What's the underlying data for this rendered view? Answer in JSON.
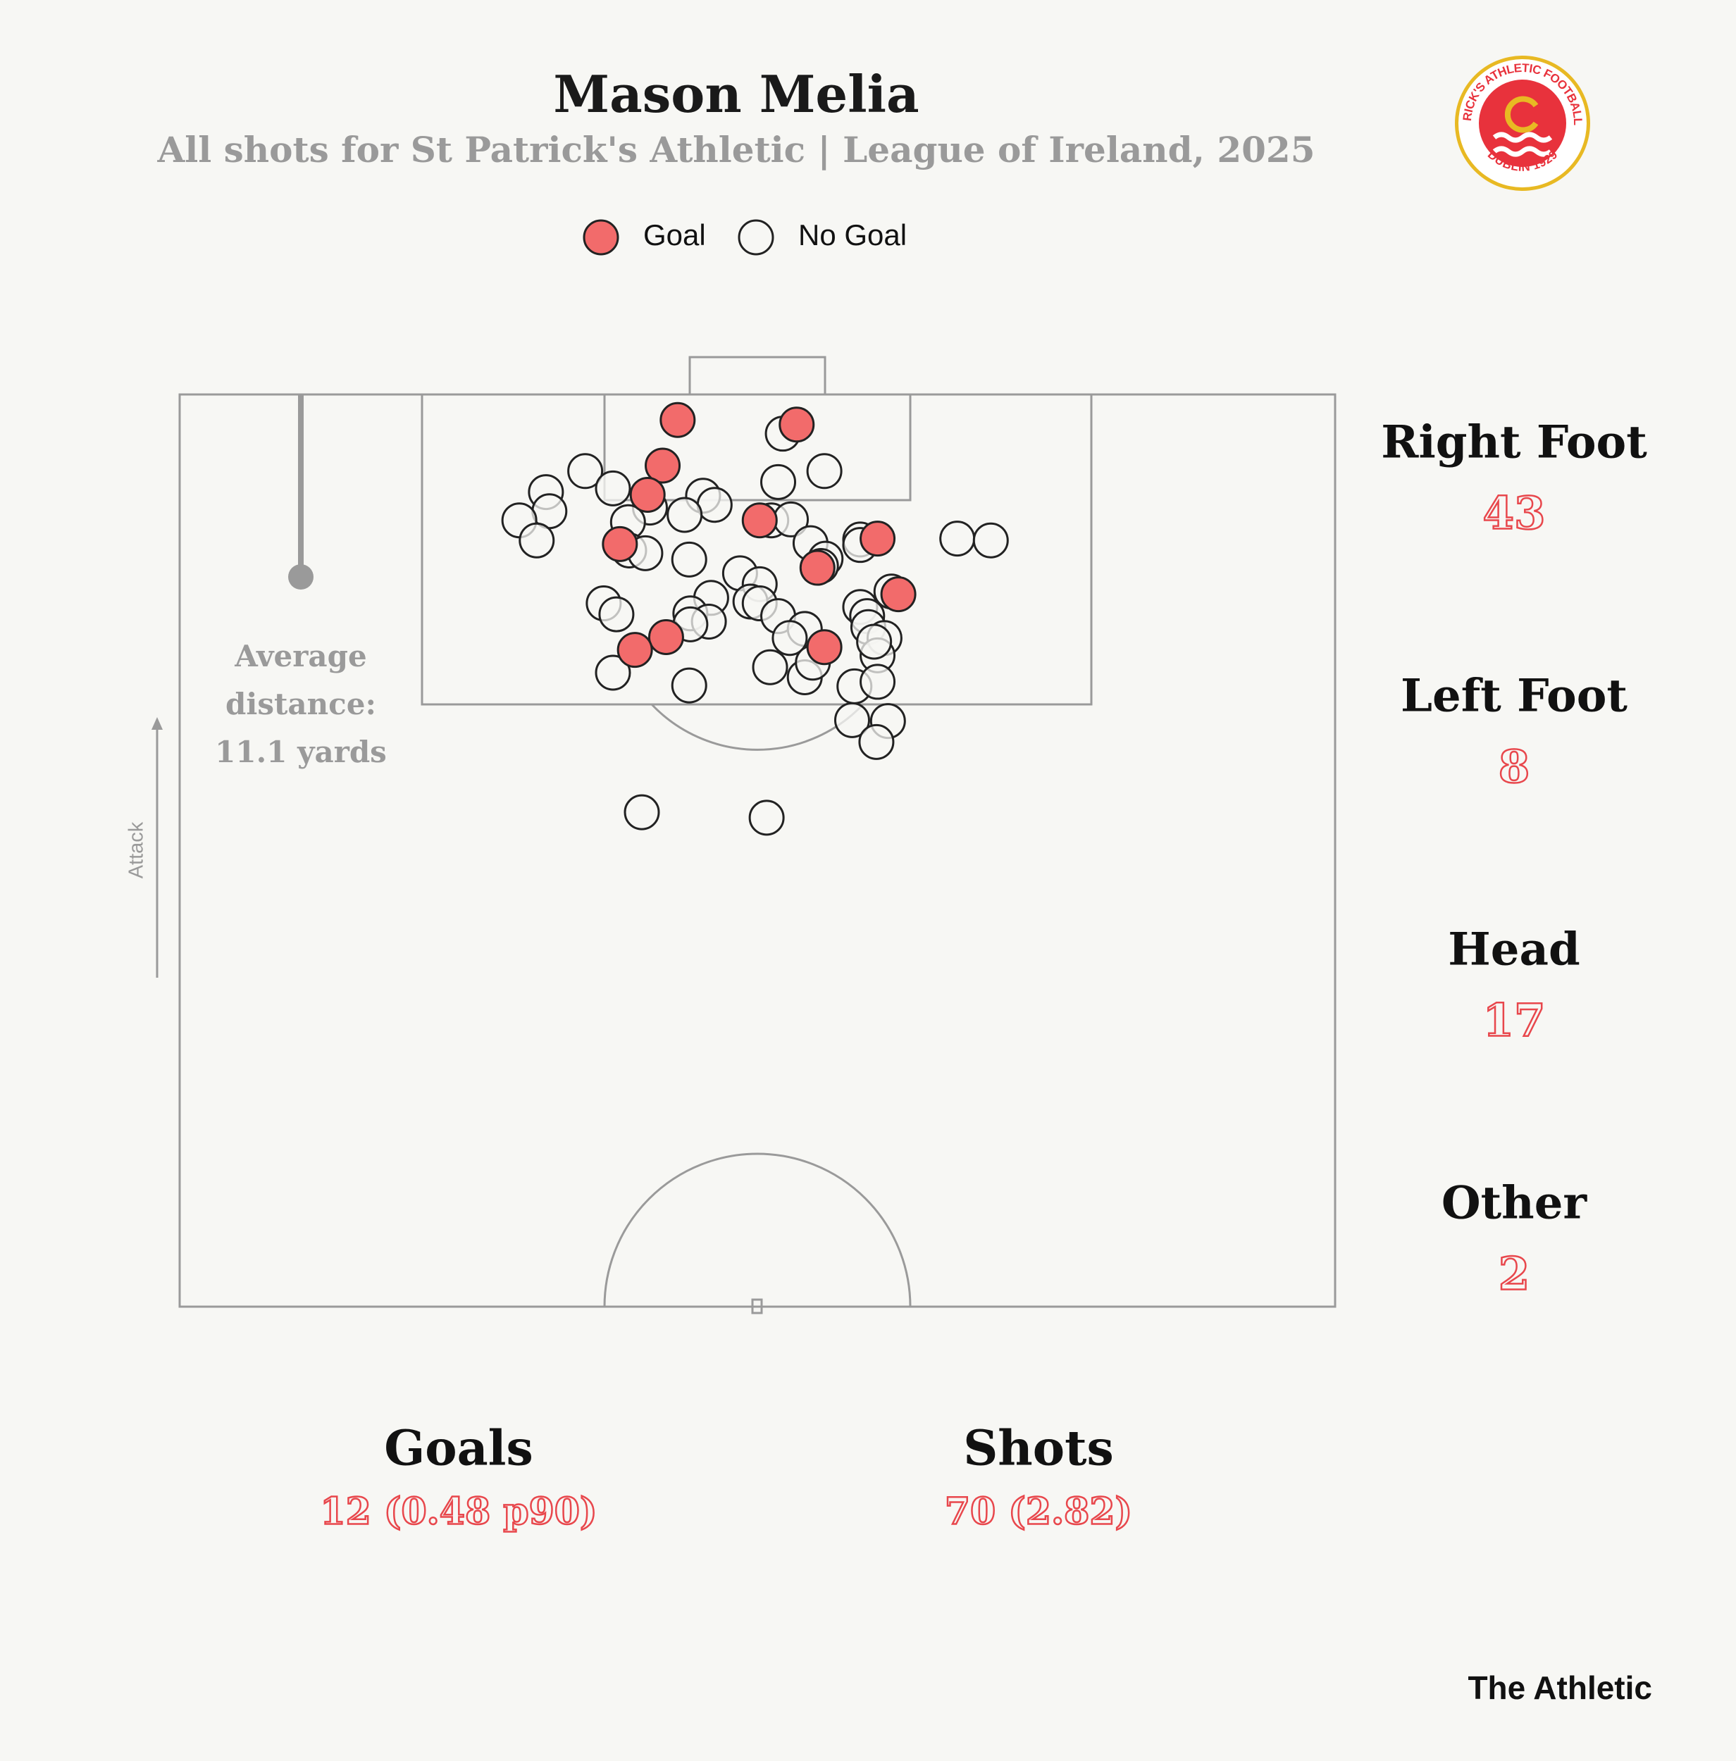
{
  "chart_data": {
    "type": "scatter",
    "title": "Mason Melia",
    "subtitle": "All shots for St Patrick's Athletic | League of Ireland, 2025",
    "xlim": [
      0,
      100
    ],
    "ylim": [
      0,
      100
    ],
    "series": [
      {
        "name": "Goal",
        "color": "#f26b6b",
        "x": [
          43.1,
          53.4,
          41.8,
          40.5,
          50.2,
          38.1,
          60.4,
          55.2,
          62.2,
          42.1,
          39.4,
          55.8
        ],
        "values": [
          2.8,
          3.3,
          7.8,
          11.0,
          13.8,
          16.4,
          15.8,
          19.0,
          21.9,
          26.6,
          28.0,
          27.7
        ]
      },
      {
        "name": "No Goal",
        "color": "#f7f7f4",
        "x": [
          52.2,
          55.8,
          35.1,
          51.8,
          37.5,
          31.7,
          32.0,
          29.4,
          30.9,
          45.3,
          46.3,
          43.7,
          40.7,
          38.8,
          51.2,
          52.9,
          54.6,
          55.9,
          55.5,
          58.9,
          58.9,
          67.3,
          70.2,
          44.1,
          38.9,
          40.3,
          48.5,
          50.2,
          49.4,
          50.2,
          46.0,
          36.7,
          37.8,
          44.2,
          45.8,
          44.2,
          51.8,
          54.1,
          52.8,
          58.9,
          59.5,
          59.6,
          61.0,
          60.4,
          61.6,
          37.5,
          51.1,
          54.1,
          54.8,
          58.4,
          60.4,
          58.2,
          61.3,
          60.3,
          40.0,
          50.8,
          44.1,
          60.1
        ],
        "values": [
          4.3,
          8.4,
          8.4,
          9.6,
          10.3,
          10.7,
          12.8,
          13.8,
          16.0,
          11.1,
          12.1,
          13.2,
          12.4,
          14.0,
          13.8,
          13.7,
          16.3,
          18.0,
          18.8,
          15.9,
          16.5,
          15.8,
          16.0,
          18.1,
          17.1,
          17.4,
          19.6,
          20.8,
          22.7,
          22.9,
          22.3,
          22.9,
          24.1,
          24.0,
          24.9,
          25.2,
          24.3,
          25.7,
          26.7,
          23.3,
          24.3,
          25.5,
          26.7,
          28.6,
          21.6,
          30.5,
          29.9,
          31.0,
          29.4,
          32.0,
          31.5,
          35.7,
          35.8,
          38.1,
          45.8,
          46.4,
          31.9,
          27.1
        ]
      }
    ],
    "average_distance_line": 20.0,
    "average_label": [
      "Average",
      "distance:",
      "11.1 yards"
    ],
    "direction_label": "Attack",
    "body_parts": [
      {
        "label": "Right Foot",
        "value": 43
      },
      {
        "label": "Left Foot",
        "value": 8
      },
      {
        "label": "Head",
        "value": 17
      },
      {
        "label": "Other",
        "value": 2
      }
    ],
    "summary": [
      {
        "label": "Goals",
        "value": "12 (0.48 p90)"
      },
      {
        "label": "Shots",
        "value": "70 (2.82)"
      }
    ],
    "logo": {
      "top": "ST PATRICK'S ATHLETIC FOOTBALL CLUB",
      "bottom": "DUBLIN 1929"
    },
    "source": "The Athletic"
  }
}
